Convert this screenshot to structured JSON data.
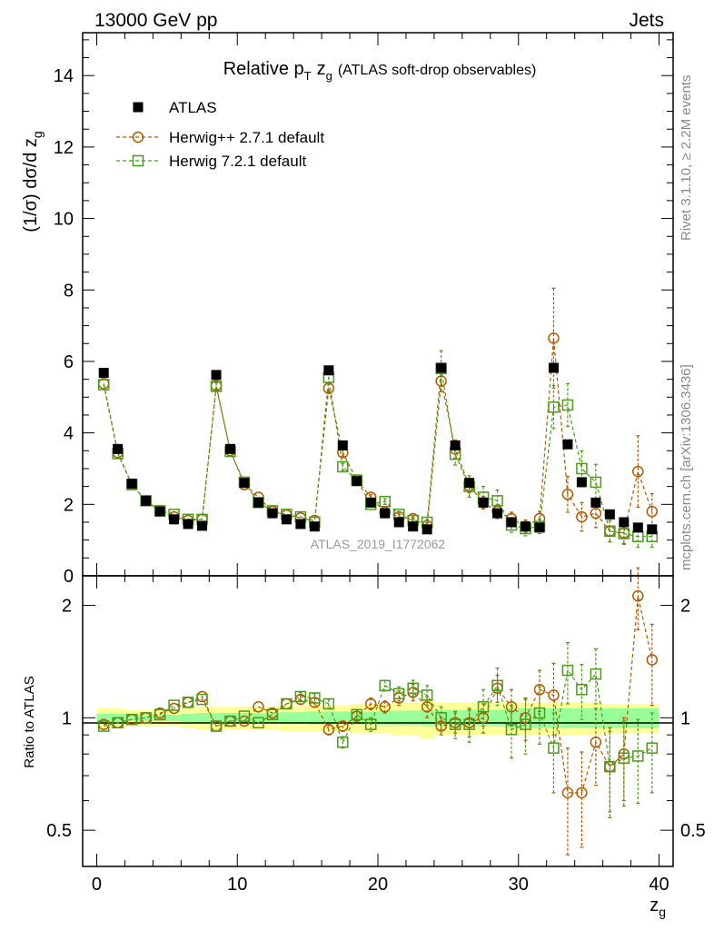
{
  "header": {
    "left": "13000 GeV pp",
    "right": "Jets",
    "side_events": "Rivet 3.1.10, ≥ 2.2M events",
    "side_source": "mcplots.cern.ch [arXiv:1306.3436]",
    "watermark": "ATLAS_2019_I1772062"
  },
  "chart_data": {
    "type": "scatter",
    "title": "Relative p_T z_g (ATLAS soft-drop observables)",
    "title_main": "Relative p",
    "title_sub": "T",
    "title_var": "z",
    "title_var_sub": "g",
    "title_rest": "(ATLAS soft-drop observables)",
    "xlabel": "z",
    "xlabel_sub": "g",
    "ylabel": "(1/σ) dσ/d z",
    "ylabel_sub": "g",
    "ratio_ylabel": "Ratio to ATLAS",
    "xlim": [
      -1,
      41
    ],
    "ylim": [
      0,
      15.2
    ],
    "ratio_ylim": [
      0.4,
      2.4
    ],
    "x_ticks": [
      "0",
      "10",
      "20",
      "30",
      "40"
    ],
    "y_ticks": [
      "0",
      "2",
      "4",
      "6",
      "8",
      "10",
      "12",
      "14"
    ],
    "ratio_ticks": [
      "0.5",
      "1",
      "2"
    ],
    "x": [
      0.5,
      1.5,
      2.5,
      3.5,
      4.5,
      5.5,
      6.5,
      7.5,
      8.5,
      9.5,
      10.5,
      11.5,
      12.5,
      13.5,
      14.5,
      15.5,
      16.5,
      17.5,
      18.5,
      19.5,
      20.5,
      21.5,
      22.5,
      23.5,
      24.5,
      25.5,
      26.5,
      27.5,
      28.5,
      29.5,
      30.5,
      31.5,
      32.5,
      33.5,
      34.5,
      35.5,
      36.5,
      37.5,
      38.5,
      39.5
    ],
    "series": [
      {
        "name": "ATLAS",
        "color": "#000000",
        "marker": "filled-square",
        "values": [
          5.68,
          3.55,
          2.58,
          2.1,
          1.8,
          1.58,
          1.45,
          1.4,
          5.62,
          3.55,
          2.6,
          2.05,
          1.75,
          1.58,
          1.45,
          1.38,
          5.75,
          3.65,
          2.65,
          2.05,
          1.75,
          1.5,
          1.38,
          1.3,
          5.82,
          3.65,
          2.6,
          2.05,
          1.75,
          1.5,
          1.38,
          1.35,
          5.82,
          3.68,
          2.62,
          2.05,
          1.72,
          1.5,
          1.35,
          1.3
        ]
      },
      {
        "name": "Herwig++ 2.7.1 default",
        "color": "#b35900",
        "marker": "open-circle",
        "values": [
          5.38,
          3.45,
          2.55,
          2.1,
          1.82,
          1.65,
          1.55,
          1.58,
          5.32,
          3.5,
          2.55,
          2.2,
          1.8,
          1.7,
          1.62,
          1.55,
          5.25,
          3.45,
          2.68,
          2.2,
          1.78,
          1.65,
          1.6,
          1.4,
          5.45,
          3.55,
          2.52,
          2.05,
          1.8,
          1.6,
          1.38,
          1.6,
          6.65,
          2.28,
          1.65,
          1.75,
          1.25,
          1.2,
          2.92,
          1.8
        ],
        "errors": [
          0.05,
          0.05,
          0.05,
          0.05,
          0.05,
          0.05,
          0.05,
          0.05,
          0.1,
          0.05,
          0.05,
          0.05,
          0.05,
          0.05,
          0.05,
          0.05,
          0.15,
          0.1,
          0.08,
          0.08,
          0.08,
          0.08,
          0.08,
          0.08,
          0.3,
          0.25,
          0.2,
          0.18,
          0.2,
          0.18,
          0.18,
          0.2,
          1.4,
          0.5,
          0.4,
          0.4,
          0.3,
          0.3,
          1.0,
          0.5
        ]
      },
      {
        "name": "Herwig 7.2.1 default",
        "color": "#4c9a1a",
        "marker": "open-square",
        "values": [
          5.35,
          3.42,
          2.55,
          2.1,
          1.82,
          1.72,
          1.58,
          1.58,
          5.3,
          3.48,
          2.62,
          2.05,
          1.82,
          1.72,
          1.65,
          1.5,
          5.55,
          3.05,
          2.68,
          2.0,
          2.08,
          1.72,
          1.55,
          1.5,
          5.8,
          3.4,
          2.5,
          2.2,
          2.1,
          1.42,
          1.32,
          1.38,
          4.72,
          4.78,
          3.0,
          2.62,
          1.25,
          1.18,
          1.1,
          1.1
        ],
        "errors": [
          0.05,
          0.05,
          0.05,
          0.05,
          0.05,
          0.05,
          0.05,
          0.05,
          0.1,
          0.05,
          0.05,
          0.05,
          0.05,
          0.05,
          0.05,
          0.05,
          0.15,
          0.1,
          0.08,
          0.08,
          0.08,
          0.08,
          0.08,
          0.08,
          0.5,
          0.3,
          0.3,
          0.3,
          0.3,
          0.2,
          0.2,
          0.2,
          0.6,
          0.6,
          0.5,
          0.5,
          0.3,
          0.3,
          0.3,
          0.3
        ]
      }
    ],
    "ratio_series": [
      {
        "name": "Herwig++ 2.7.1 default",
        "values": [
          0.96,
          0.97,
          0.99,
          1.0,
          1.03,
          1.06,
          1.1,
          1.14,
          0.95,
          0.98,
          0.98,
          1.07,
          1.03,
          1.09,
          1.12,
          1.1,
          0.93,
          0.95,
          1.01,
          1.09,
          1.07,
          1.13,
          1.17,
          1.07,
          0.95,
          0.97,
          0.97,
          1.0,
          1.2,
          1.07,
          1.0,
          1.19,
          1.15,
          0.63,
          0.63,
          0.86,
          0.74,
          0.8,
          2.12,
          1.43
        ],
        "errors": [
          0.01,
          0.01,
          0.01,
          0.01,
          0.01,
          0.01,
          0.01,
          0.02,
          0.01,
          0.01,
          0.01,
          0.02,
          0.02,
          0.02,
          0.03,
          0.03,
          0.03,
          0.03,
          0.03,
          0.04,
          0.04,
          0.05,
          0.06,
          0.07,
          0.05,
          0.06,
          0.08,
          0.09,
          0.1,
          0.12,
          0.13,
          0.15,
          0.25,
          0.2,
          0.18,
          0.2,
          0.2,
          0.2,
          0.4,
          0.35
        ]
      },
      {
        "name": "Herwig 7.2.1 default",
        "values": [
          0.95,
          0.97,
          0.99,
          1.0,
          1.02,
          1.08,
          1.1,
          1.12,
          0.95,
          0.98,
          1.01,
          0.97,
          1.02,
          1.09,
          1.14,
          1.13,
          1.09,
          0.86,
          1.02,
          0.96,
          1.22,
          1.16,
          1.2,
          1.15,
          1.0,
          0.96,
          0.96,
          1.07,
          1.22,
          0.93,
          0.96,
          1.03,
          0.83,
          1.34,
          1.19,
          1.31,
          0.74,
          0.78,
          0.79,
          0.83
        ],
        "errors": [
          0.01,
          0.01,
          0.01,
          0.01,
          0.01,
          0.01,
          0.01,
          0.02,
          0.01,
          0.01,
          0.01,
          0.02,
          0.02,
          0.02,
          0.03,
          0.03,
          0.03,
          0.03,
          0.03,
          0.04,
          0.04,
          0.05,
          0.06,
          0.07,
          0.07,
          0.08,
          0.1,
          0.12,
          0.14,
          0.15,
          0.16,
          0.18,
          0.2,
          0.25,
          0.2,
          0.22,
          0.18,
          0.2,
          0.2,
          0.2
        ]
      }
    ],
    "bands": {
      "inner_color": "#99ff99",
      "outer_color": "#ffff99",
      "inner": [
        0.025,
        0.025,
        0.02,
        0.02,
        0.02,
        0.02,
        0.025,
        0.03,
        0.03,
        0.03,
        0.03,
        0.03,
        0.03,
        0.035,
        0.035,
        0.04,
        0.04,
        0.04,
        0.04,
        0.04,
        0.045,
        0.045,
        0.045,
        0.05,
        0.05,
        0.05,
        0.05,
        0.05,
        0.05,
        0.06,
        0.06,
        0.06,
        0.06,
        0.06,
        0.06,
        0.06,
        0.06,
        0.06,
        0.06,
        0.06
      ],
      "outer": [
        0.06,
        0.06,
        0.05,
        0.05,
        0.05,
        0.05,
        0.06,
        0.07,
        0.07,
        0.07,
        0.07,
        0.07,
        0.07,
        0.08,
        0.08,
        0.08,
        0.08,
        0.08,
        0.09,
        0.09,
        0.09,
        0.1,
        0.1,
        0.12,
        0.1,
        0.1,
        0.1,
        0.1,
        0.1,
        0.1,
        0.1,
        0.1,
        0.1,
        0.1,
        0.1,
        0.1,
        0.09,
        0.09,
        0.09,
        0.09
      ]
    }
  }
}
